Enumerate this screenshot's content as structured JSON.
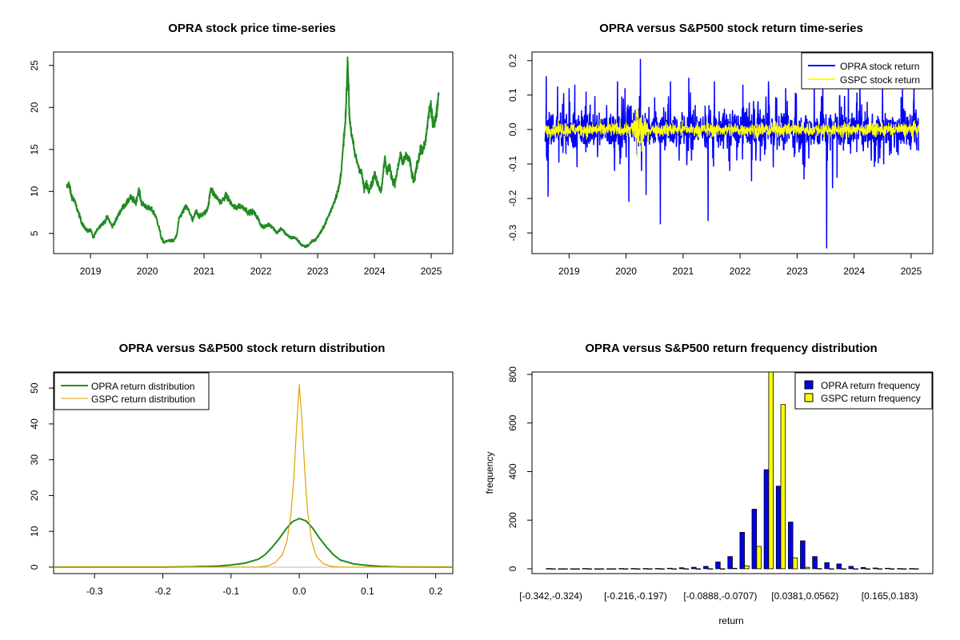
{
  "chart_data": [
    {
      "type": "line",
      "title": "OPRA stock price time-series",
      "xlim": [
        2018.35,
        2025.38
      ],
      "ylim": [
        2.6,
        26.6
      ],
      "x_ticks": [
        2019,
        2020,
        2021,
        2022,
        2023,
        2024,
        2025
      ],
      "x_tick_labels": [
        "2019",
        "2020",
        "2021",
        "2022",
        "2023",
        "2024",
        "2025"
      ],
      "y_ticks": [
        5,
        10,
        15,
        20,
        25
      ],
      "y_tick_labels": [
        "5",
        "10",
        "15",
        "20",
        "25"
      ],
      "color": "#228B22",
      "series": [
        {
          "values": [
            [
              2018.58,
              10.5
            ],
            [
              2018.62,
              10.9
            ],
            [
              2018.66,
              9.6
            ],
            [
              2018.72,
              8.8
            ],
            [
              2018.78,
              7.6
            ],
            [
              2018.84,
              6.4
            ],
            [
              2018.9,
              5.6
            ],
            [
              2018.96,
              5.3
            ],
            [
              2019.0,
              5.4
            ],
            [
              2019.05,
              4.5
            ],
            [
              2019.1,
              5.3
            ],
            [
              2019.18,
              6.0
            ],
            [
              2019.25,
              6.4
            ],
            [
              2019.3,
              7.0
            ],
            [
              2019.38,
              5.8
            ],
            [
              2019.45,
              6.6
            ],
            [
              2019.52,
              7.6
            ],
            [
              2019.58,
              8.2
            ],
            [
              2019.64,
              8.6
            ],
            [
              2019.7,
              9.3
            ],
            [
              2019.75,
              9.0
            ],
            [
              2019.8,
              8.7
            ],
            [
              2019.85,
              10.2
            ],
            [
              2019.9,
              8.6
            ],
            [
              2019.96,
              8.3
            ],
            [
              2020.02,
              8.0
            ],
            [
              2020.08,
              7.8
            ],
            [
              2020.14,
              7.2
            ],
            [
              2020.2,
              5.9
            ],
            [
              2020.25,
              4.4
            ],
            [
              2020.3,
              3.9
            ],
            [
              2020.38,
              4.2
            ],
            [
              2020.46,
              4.1
            ],
            [
              2020.52,
              4.8
            ],
            [
              2020.56,
              6.8
            ],
            [
              2020.62,
              7.5
            ],
            [
              2020.68,
              8.2
            ],
            [
              2020.74,
              7.6
            ],
            [
              2020.8,
              6.5
            ],
            [
              2020.86,
              7.7
            ],
            [
              2020.92,
              7.0
            ],
            [
              2020.98,
              7.3
            ],
            [
              2021.04,
              7.6
            ],
            [
              2021.08,
              8.5
            ],
            [
              2021.12,
              10.5
            ],
            [
              2021.16,
              9.8
            ],
            [
              2021.22,
              9.3
            ],
            [
              2021.3,
              8.7
            ],
            [
              2021.38,
              9.5
            ],
            [
              2021.44,
              9.0
            ],
            [
              2021.5,
              8.3
            ],
            [
              2021.56,
              8.0
            ],
            [
              2021.62,
              8.3
            ],
            [
              2021.7,
              8.1
            ],
            [
              2021.78,
              7.5
            ],
            [
              2021.86,
              7.6
            ],
            [
              2021.94,
              6.9
            ],
            [
              2022.0,
              6.0
            ],
            [
              2022.06,
              5.7
            ],
            [
              2022.14,
              6.1
            ],
            [
              2022.2,
              5.8
            ],
            [
              2022.28,
              5.1
            ],
            [
              2022.36,
              5.6
            ],
            [
              2022.44,
              4.9
            ],
            [
              2022.52,
              4.5
            ],
            [
              2022.6,
              4.5
            ],
            [
              2022.66,
              4.1
            ],
            [
              2022.72,
              3.6
            ],
            [
              2022.78,
              3.4
            ],
            [
              2022.84,
              3.6
            ],
            [
              2022.9,
              4.1
            ],
            [
              2022.96,
              4.2
            ],
            [
              2023.02,
              4.8
            ],
            [
              2023.08,
              5.4
            ],
            [
              2023.14,
              6.3
            ],
            [
              2023.2,
              7.2
            ],
            [
              2023.26,
              8.2
            ],
            [
              2023.32,
              9.3
            ],
            [
              2023.38,
              10.6
            ],
            [
              2023.42,
              12.7
            ],
            [
              2023.46,
              16.2
            ],
            [
              2023.49,
              18.3
            ],
            [
              2023.51,
              22.1
            ],
            [
              2023.53,
              25.6
            ],
            [
              2023.56,
              19.0
            ],
            [
              2023.6,
              16.6
            ],
            [
              2023.66,
              14.3
            ],
            [
              2023.72,
              13.0
            ],
            [
              2023.78,
              12.0
            ],
            [
              2023.82,
              10.2
            ],
            [
              2023.86,
              11.0
            ],
            [
              2023.9,
              10.2
            ],
            [
              2023.96,
              11.0
            ],
            [
              2024.0,
              12.0
            ],
            [
              2024.06,
              11.0
            ],
            [
              2024.12,
              10.0
            ],
            [
              2024.18,
              14.0
            ],
            [
              2024.22,
              12.3
            ],
            [
              2024.26,
              13.0
            ],
            [
              2024.32,
              11.3
            ],
            [
              2024.36,
              11.0
            ],
            [
              2024.42,
              13.0
            ],
            [
              2024.46,
              14.5
            ],
            [
              2024.5,
              13.2
            ],
            [
              2024.56,
              14.3
            ],
            [
              2024.62,
              13.7
            ],
            [
              2024.66,
              12.0
            ],
            [
              2024.7,
              11.1
            ],
            [
              2024.74,
              13.0
            ],
            [
              2024.78,
              14.0
            ],
            [
              2024.82,
              15.0
            ],
            [
              2024.86,
              14.9
            ],
            [
              2024.9,
              16.0
            ],
            [
              2024.94,
              18.3
            ],
            [
              2024.98,
              20.3
            ],
            [
              2025.02,
              18.7
            ],
            [
              2025.06,
              18.0
            ],
            [
              2025.1,
              19.6
            ],
            [
              2025.13,
              21.8
            ]
          ]
        }
      ]
    },
    {
      "type": "line",
      "title": "OPRA versus S&P500 stock return time-series",
      "xlim": [
        2018.35,
        2025.38
      ],
      "ylim": [
        -0.36,
        0.225
      ],
      "x_ticks": [
        2019,
        2020,
        2021,
        2022,
        2023,
        2024,
        2025
      ],
      "x_tick_labels": [
        "2019",
        "2020",
        "2021",
        "2022",
        "2023",
        "2024",
        "2025"
      ],
      "y_ticks": [
        -0.3,
        -0.2,
        -0.1,
        0.0,
        0.1,
        0.2
      ],
      "y_tick_labels": [
        "-0.3",
        "-0.2",
        "-0.1",
        "0.0",
        "0.1",
        "0.2"
      ],
      "legend": {
        "position": "top-right",
        "entries": [
          "OPRA stock return",
          "GSPC stock return"
        ]
      },
      "series": [
        {
          "name": "OPRA stock return",
          "color": "#0000FF",
          "spikes": [
            [
              2018.6,
              0.155
            ],
            [
              2018.61,
              -0.09
            ],
            [
              2018.63,
              -0.195
            ],
            [
              2018.8,
              0.125
            ],
            [
              2019.0,
              0.12
            ],
            [
              2019.1,
              0.13
            ],
            [
              2019.3,
              0.11
            ],
            [
              2019.5,
              -0.08
            ],
            [
              2019.8,
              -0.12
            ],
            [
              2019.85,
              0.14
            ],
            [
              2019.98,
              0.12
            ],
            [
              2020.05,
              -0.21
            ],
            [
              2020.25,
              0.205
            ],
            [
              2020.27,
              -0.12
            ],
            [
              2020.35,
              -0.19
            ],
            [
              2020.6,
              -0.275
            ],
            [
              2020.78,
              0.14
            ],
            [
              2021.1,
              0.15
            ],
            [
              2021.15,
              -0.09
            ],
            [
              2021.44,
              -0.265
            ],
            [
              2021.55,
              0.14
            ],
            [
              2021.82,
              -0.12
            ],
            [
              2022.05,
              0.13
            ],
            [
              2022.2,
              -0.15
            ],
            [
              2022.5,
              0.14
            ],
            [
              2022.58,
              -0.11
            ],
            [
              2022.8,
              0.12
            ],
            [
              2022.95,
              -0.08
            ],
            [
              2023.12,
              -0.145
            ],
            [
              2023.3,
              0.15
            ],
            [
              2023.45,
              0.145
            ],
            [
              2023.52,
              -0.345
            ],
            [
              2023.62,
              -0.17
            ],
            [
              2023.7,
              -0.14
            ],
            [
              2023.75,
              0.1
            ],
            [
              2023.9,
              0.13
            ],
            [
              2024.1,
              0.135
            ],
            [
              2024.3,
              -0.09
            ],
            [
              2024.5,
              0.13
            ],
            [
              2024.65,
              -0.07
            ],
            [
              2024.85,
              0.12
            ],
            [
              2025.05,
              0.135
            ],
            [
              2025.1,
              -0.06
            ]
          ],
          "typical_amplitude": 0.035
        },
        {
          "name": "GSPC stock return",
          "color": "#FFFF00",
          "typical_amplitude": 0.01,
          "burst": {
            "center": 2020.22,
            "amplitude": 0.07
          }
        }
      ]
    },
    {
      "type": "line",
      "title": "OPRA versus S&P500 stock return distribution",
      "xlim": [
        -0.36,
        0.225
      ],
      "ylim": [
        -1.8,
        54.5
      ],
      "x_ticks": [
        -0.3,
        -0.2,
        -0.1,
        0.0,
        0.1,
        0.2
      ],
      "x_tick_labels": [
        "-0.3",
        "-0.2",
        "-0.1",
        "0.0",
        "0.1",
        "0.2"
      ],
      "y_ticks": [
        0,
        10,
        20,
        30,
        40,
        50
      ],
      "y_tick_labels": [
        "0",
        "10",
        "20",
        "30",
        "40",
        "50"
      ],
      "legend": {
        "position": "top-left",
        "entries": [
          "OPRA return distribution",
          "GSPC return distribution"
        ]
      },
      "series": [
        {
          "name": "OPRA return distribution",
          "color": "#228B22",
          "values": [
            [
              -0.36,
              0
            ],
            [
              -0.2,
              0
            ],
            [
              -0.16,
              0.1
            ],
            [
              -0.12,
              0.3
            ],
            [
              -0.1,
              0.6
            ],
            [
              -0.08,
              1.1
            ],
            [
              -0.06,
              2.2
            ],
            [
              -0.05,
              3.5
            ],
            [
              -0.04,
              5.5
            ],
            [
              -0.03,
              7.8
            ],
            [
              -0.02,
              10.5
            ],
            [
              -0.01,
              12.7
            ],
            [
              0.0,
              13.6
            ],
            [
              0.01,
              12.9
            ],
            [
              0.02,
              10.8
            ],
            [
              0.03,
              8.0
            ],
            [
              0.04,
              5.6
            ],
            [
              0.05,
              3.5
            ],
            [
              0.06,
              2.0
            ],
            [
              0.08,
              0.9
            ],
            [
              0.1,
              0.5
            ],
            [
              0.12,
              0.2
            ],
            [
              0.15,
              0.05
            ],
            [
              0.225,
              0
            ]
          ]
        },
        {
          "name": "GSPC return distribution",
          "color": "#E6A000",
          "values": [
            [
              -0.36,
              0
            ],
            [
              -0.06,
              0
            ],
            [
              -0.045,
              0.4
            ],
            [
              -0.035,
              1.3
            ],
            [
              -0.025,
              3.4
            ],
            [
              -0.018,
              7.2
            ],
            [
              -0.012,
              15
            ],
            [
              -0.008,
              25
            ],
            [
              -0.004,
              39
            ],
            [
              0.0,
              51
            ],
            [
              0.004,
              41
            ],
            [
              0.008,
              27
            ],
            [
              0.012,
              16
            ],
            [
              0.018,
              7.5
            ],
            [
              0.025,
              3.0
            ],
            [
              0.035,
              1.0
            ],
            [
              0.045,
              0.3
            ],
            [
              0.06,
              0
            ],
            [
              0.225,
              0
            ]
          ]
        }
      ]
    },
    {
      "type": "bar",
      "title": "OPRA versus S&P500 return frequency distribution",
      "xlabel": "return",
      "ylabel": "frequency",
      "ylim": [
        -20,
        810
      ],
      "y_ticks": [
        0,
        200,
        400,
        600,
        800
      ],
      "y_tick_labels": [
        "0",
        "200",
        "400",
        "600",
        "800"
      ],
      "x_tick_labels": [
        "[-0.342,-0.324)",
        "[-0.216,-0.197)",
        "[-0.0888,-0.0707)",
        "[0.0381,0.0562)",
        "[0.165,0.183)"
      ],
      "x_tick_bins": [
        0,
        7,
        14,
        21,
        28
      ],
      "legend": {
        "position": "top-right",
        "entries": [
          "OPRA return frequency",
          "GSPC return frequency"
        ]
      },
      "series": [
        {
          "name": "OPRA return frequency",
          "color": "#0000EE",
          "values": [
            1,
            0,
            0,
            1,
            0,
            0,
            1,
            1,
            1,
            1,
            2,
            4,
            6,
            10,
            28,
            50,
            150,
            245,
            408,
            340,
            192,
            115,
            50,
            25,
            20,
            10,
            5,
            3,
            2,
            1,
            1
          ]
        },
        {
          "name": "GSPC return frequency",
          "color": "#FFFF00",
          "values": [
            0,
            0,
            0,
            0,
            0,
            0,
            0,
            0,
            0,
            0,
            0,
            0,
            0,
            0,
            0,
            2,
            12,
            92,
            810,
            676,
            45,
            6,
            1,
            0,
            0,
            0,
            0,
            0,
            0,
            0,
            0
          ]
        }
      ]
    }
  ]
}
